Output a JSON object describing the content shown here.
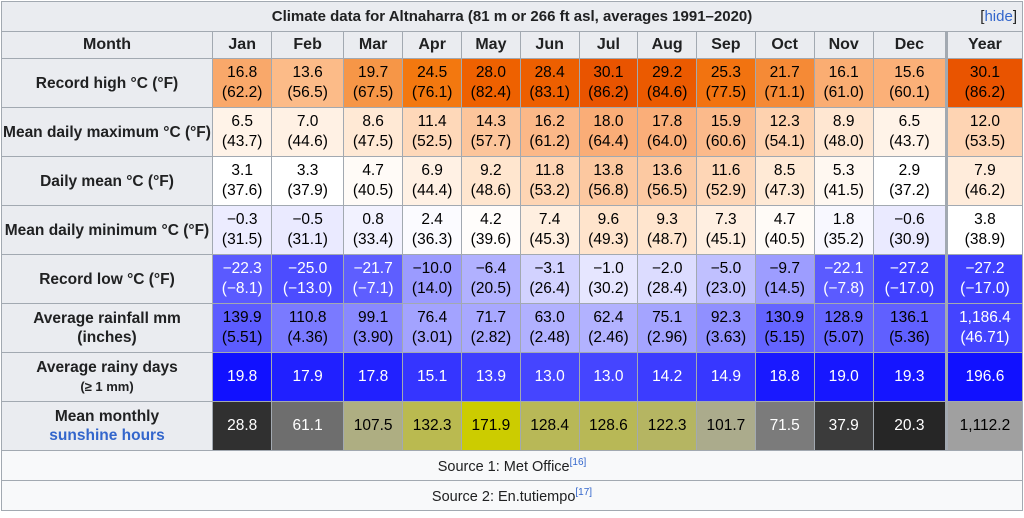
{
  "title": "Climate data for Altnaharra (81 m or 266 ft asl, averages 1991–2020)",
  "hide_bracket_open": "[",
  "hide_label": "hide",
  "hide_bracket_close": "]",
  "header": {
    "first": "Month",
    "months": [
      "Jan",
      "Feb",
      "Mar",
      "Apr",
      "May",
      "Jun",
      "Jul",
      "Aug",
      "Sep",
      "Oct",
      "Nov",
      "Dec"
    ],
    "year": "Year"
  },
  "rows": [
    {
      "name": "record-high",
      "label": "Record high °C (°F)",
      "months": [
        {
          "c": "16.8",
          "f": "(62.2)",
          "bg": "#f9a86a",
          "fg": "#000000"
        },
        {
          "c": "13.6",
          "f": "(56.5)",
          "bg": "#fcbb88",
          "fg": "#000000"
        },
        {
          "c": "19.7",
          "f": "(67.5)",
          "bg": "#f69647",
          "fg": "#000000"
        },
        {
          "c": "24.5",
          "f": "(76.1)",
          "bg": "#f3780f",
          "fg": "#000000"
        },
        {
          "c": "28.0",
          "f": "(82.4)",
          "bg": "#ee6100",
          "fg": "#000000"
        },
        {
          "c": "28.4",
          "f": "(83.1)",
          "bg": "#ed5f00",
          "fg": "#000000"
        },
        {
          "c": "30.1",
          "f": "(86.2)",
          "bg": "#e95400",
          "fg": "#000000"
        },
        {
          "c": "29.2",
          "f": "(84.6)",
          "bg": "#eb5a00",
          "fg": "#000000"
        },
        {
          "c": "25.3",
          "f": "(77.5)",
          "bg": "#f27310",
          "fg": "#000000"
        },
        {
          "c": "21.7",
          "f": "(71.1)",
          "bg": "#f58a36",
          "fg": "#000000"
        },
        {
          "c": "16.1",
          "f": "(61.0)",
          "bg": "#faad72",
          "fg": "#000000"
        },
        {
          "c": "15.6",
          "f": "(60.1)",
          "bg": "#fbb078",
          "fg": "#000000"
        }
      ],
      "year": {
        "c": "30.1",
        "f": "(86.2)",
        "bg": "#e95400",
        "fg": "#000000"
      }
    },
    {
      "name": "mean-daily-maximum",
      "label": "Mean daily maximum °C (°F)",
      "months": [
        {
          "c": "6.5",
          "f": "(43.7)",
          "bg": "#fff3e8",
          "fg": "#000000"
        },
        {
          "c": "7.0",
          "f": "(44.6)",
          "bg": "#fff1e4",
          "fg": "#000000"
        },
        {
          "c": "8.6",
          "f": "(47.5)",
          "bg": "#ffe9d5",
          "fg": "#000000"
        },
        {
          "c": "11.4",
          "f": "(52.5)",
          "bg": "#fed8b9",
          "fg": "#000000"
        },
        {
          "c": "14.3",
          "f": "(57.7)",
          "bg": "#fcc59b",
          "fg": "#000000"
        },
        {
          "c": "16.2",
          "f": "(61.2)",
          "bg": "#fbb888",
          "fg": "#000000"
        },
        {
          "c": "18.0",
          "f": "(64.4)",
          "bg": "#faad77",
          "fg": "#000000"
        },
        {
          "c": "17.8",
          "f": "(64.0)",
          "bg": "#faae79",
          "fg": "#000000"
        },
        {
          "c": "15.9",
          "f": "(60.6)",
          "bg": "#fbba8b",
          "fg": "#000000"
        },
        {
          "c": "12.3",
          "f": "(54.1)",
          "bg": "#fed2af",
          "fg": "#000000"
        },
        {
          "c": "8.9",
          "f": "(48.0)",
          "bg": "#ffe7d2",
          "fg": "#000000"
        },
        {
          "c": "6.5",
          "f": "(43.7)",
          "bg": "#fff3e8",
          "fg": "#000000"
        }
      ],
      "year": {
        "c": "12.0",
        "f": "(53.5)",
        "bg": "#fed4b3",
        "fg": "#000000"
      }
    },
    {
      "name": "daily-mean",
      "label": "Daily mean °C (°F)",
      "months": [
        {
          "c": "3.1",
          "f": "(37.6)",
          "bg": "#ffffff",
          "fg": "#000000"
        },
        {
          "c": "3.3",
          "f": "(37.9)",
          "bg": "#ffffff",
          "fg": "#000000"
        },
        {
          "c": "4.7",
          "f": "(40.5)",
          "bg": "#fffbf7",
          "fg": "#000000"
        },
        {
          "c": "6.9",
          "f": "(44.4)",
          "bg": "#fff1e4",
          "fg": "#000000"
        },
        {
          "c": "9.2",
          "f": "(48.6)",
          "bg": "#ffe6cf",
          "fg": "#000000"
        },
        {
          "c": "11.8",
          "f": "(53.2)",
          "bg": "#fed5b4",
          "fg": "#000000"
        },
        {
          "c": "13.8",
          "f": "(56.8)",
          "bg": "#fcc8a0",
          "fg": "#000000"
        },
        {
          "c": "13.6",
          "f": "(56.5)",
          "bg": "#fcc9a2",
          "fg": "#000000"
        },
        {
          "c": "11.6",
          "f": "(52.9)",
          "bg": "#fed6b6",
          "fg": "#000000"
        },
        {
          "c": "8.5",
          "f": "(47.3)",
          "bg": "#ffead6",
          "fg": "#000000"
        },
        {
          "c": "5.3",
          "f": "(41.5)",
          "bg": "#fff8f1",
          "fg": "#000000"
        },
        {
          "c": "2.9",
          "f": "(37.2)",
          "bg": "#ffffff",
          "fg": "#000000"
        }
      ],
      "year": {
        "c": "7.9",
        "f": "(46.2)",
        "bg": "#ffecdb",
        "fg": "#000000"
      }
    },
    {
      "name": "mean-daily-minimum",
      "label": "Mean daily minimum °C (°F)",
      "months": [
        {
          "c": "−0.3",
          "f": "(31.5)",
          "bg": "#ececff",
          "fg": "#000000"
        },
        {
          "c": "−0.5",
          "f": "(31.1)",
          "bg": "#eaeaff",
          "fg": "#000000"
        },
        {
          "c": "0.8",
          "f": "(33.4)",
          "bg": "#f2f2ff",
          "fg": "#000000"
        },
        {
          "c": "2.4",
          "f": "(36.3)",
          "bg": "#fbfbff",
          "fg": "#000000"
        },
        {
          "c": "4.2",
          "f": "(39.6)",
          "bg": "#fffdfb",
          "fg": "#000000"
        },
        {
          "c": "7.4",
          "f": "(45.3)",
          "bg": "#ffefe0",
          "fg": "#000000"
        },
        {
          "c": "9.6",
          "f": "(49.3)",
          "bg": "#ffe4cc",
          "fg": "#000000"
        },
        {
          "c": "9.3",
          "f": "(48.7)",
          "bg": "#ffe5ce",
          "fg": "#000000"
        },
        {
          "c": "7.3",
          "f": "(45.1)",
          "bg": "#ffefe1",
          "fg": "#000000"
        },
        {
          "c": "4.7",
          "f": "(40.5)",
          "bg": "#fffbf7",
          "fg": "#000000"
        },
        {
          "c": "1.8",
          "f": "(35.2)",
          "bg": "#f8f8ff",
          "fg": "#000000"
        },
        {
          "c": "−0.6",
          "f": "(30.9)",
          "bg": "#eaeaff",
          "fg": "#000000"
        }
      ],
      "year": {
        "c": "3.8",
        "f": "(38.9)",
        "bg": "#ffffff",
        "fg": "#000000"
      }
    },
    {
      "name": "record-low",
      "label": "Record low °C (°F)",
      "months": [
        {
          "c": "−22.3",
          "f": "(−8.1)",
          "bg": "#5a5aff",
          "fg": "#ffffff"
        },
        {
          "c": "−25.0",
          "f": "(−13.0)",
          "bg": "#4c4cff",
          "fg": "#ffffff"
        },
        {
          "c": "−21.7",
          "f": "(−7.1)",
          "bg": "#5e5eff",
          "fg": "#ffffff"
        },
        {
          "c": "−10.0",
          "f": "(14.0)",
          "bg": "#9b9bff",
          "fg": "#000000"
        },
        {
          "c": "−6.4",
          "f": "(20.5)",
          "bg": "#b1b1ff",
          "fg": "#000000"
        },
        {
          "c": "−3.1",
          "f": "(26.4)",
          "bg": "#d2d2ff",
          "fg": "#000000"
        },
        {
          "c": "−1.0",
          "f": "(30.2)",
          "bg": "#e6e6ff",
          "fg": "#000000"
        },
        {
          "c": "−2.0",
          "f": "(28.4)",
          "bg": "#dcdcff",
          "fg": "#000000"
        },
        {
          "c": "−5.0",
          "f": "(23.0)",
          "bg": "#c0c0ff",
          "fg": "#000000"
        },
        {
          "c": "−9.7",
          "f": "(14.5)",
          "bg": "#9d9dff",
          "fg": "#000000"
        },
        {
          "c": "−22.1",
          "f": "(−7.8)",
          "bg": "#5b5bff",
          "fg": "#ffffff"
        },
        {
          "c": "−27.2",
          "f": "(−17.0)",
          "bg": "#4040ff",
          "fg": "#ffffff"
        }
      ],
      "year": {
        "c": "−27.2",
        "f": "(−17.0)",
        "bg": "#4040ff",
        "fg": "#ffffff"
      }
    },
    {
      "name": "average-rainfall",
      "label": "Average rainfall mm (inches)",
      "months": [
        {
          "c": "139.9",
          "f": "(5.51)",
          "bg": "#5c5cff",
          "fg": "#000000"
        },
        {
          "c": "110.8",
          "f": "(4.36)",
          "bg": "#7a7aff",
          "fg": "#000000"
        },
        {
          "c": "99.1",
          "f": "(3.90)",
          "bg": "#8989ff",
          "fg": "#000000"
        },
        {
          "c": "76.4",
          "f": "(3.01)",
          "bg": "#a3a3ff",
          "fg": "#000000"
        },
        {
          "c": "71.7",
          "f": "(2.82)",
          "bg": "#a8a8ff",
          "fg": "#000000"
        },
        {
          "c": "63.0",
          "f": "(2.48)",
          "bg": "#b1b1ff",
          "fg": "#000000"
        },
        {
          "c": "62.4",
          "f": "(2.46)",
          "bg": "#b2b2ff",
          "fg": "#000000"
        },
        {
          "c": "75.1",
          "f": "(2.96)",
          "bg": "#a4a4ff",
          "fg": "#000000"
        },
        {
          "c": "92.3",
          "f": "(3.63)",
          "bg": "#9090ff",
          "fg": "#000000"
        },
        {
          "c": "130.9",
          "f": "(5.15)",
          "bg": "#6464ff",
          "fg": "#000000"
        },
        {
          "c": "128.9",
          "f": "(5.07)",
          "bg": "#6666ff",
          "fg": "#000000"
        },
        {
          "c": "136.1",
          "f": "(5.36)",
          "bg": "#6060ff",
          "fg": "#000000"
        }
      ],
      "year": {
        "c": "1,186.4",
        "f": "(46.71)",
        "bg": "#4444ff",
        "fg": "#ffffff"
      }
    },
    {
      "name": "average-rainy-days",
      "label": "Average rainy days",
      "sub": "(≥ 1 mm)",
      "months": [
        {
          "c": "19.8",
          "bg": "#1111ff",
          "fg": "#ffffff"
        },
        {
          "c": "17.9",
          "bg": "#2020ff",
          "fg": "#ffffff"
        },
        {
          "c": "17.8",
          "bg": "#2121ff",
          "fg": "#ffffff"
        },
        {
          "c": "15.1",
          "bg": "#3535ff",
          "fg": "#ffffff"
        },
        {
          "c": "13.9",
          "bg": "#3e3eff",
          "fg": "#ffffff"
        },
        {
          "c": "13.0",
          "bg": "#4545ff",
          "fg": "#ffffff"
        },
        {
          "c": "13.0",
          "bg": "#4545ff",
          "fg": "#ffffff"
        },
        {
          "c": "14.2",
          "bg": "#3c3cff",
          "fg": "#ffffff"
        },
        {
          "c": "14.9",
          "bg": "#3737ff",
          "fg": "#ffffff"
        },
        {
          "c": "18.8",
          "bg": "#1919ff",
          "fg": "#ffffff"
        },
        {
          "c": "19.0",
          "bg": "#1717ff",
          "fg": "#ffffff"
        },
        {
          "c": "19.3",
          "bg": "#1515ff",
          "fg": "#ffffff"
        }
      ],
      "year": {
        "c": "196.6",
        "bg": "#1111ff",
        "fg": "#ffffff"
      }
    },
    {
      "name": "mean-monthly-sunshine",
      "label": "Mean monthly",
      "link": "sunshine hours",
      "months": [
        {
          "c": "28.8",
          "bg": "#303030",
          "fg": "#ffffff"
        },
        {
          "c": "61.1",
          "bg": "#6e6e6e",
          "fg": "#ffffff"
        },
        {
          "c": "107.5",
          "bg": "#aeae82",
          "fg": "#000000"
        },
        {
          "c": "132.3",
          "bg": "#baba50",
          "fg": "#000000"
        },
        {
          "c": "171.9",
          "bg": "#cccc00",
          "fg": "#000000"
        },
        {
          "c": "128.4",
          "bg": "#b8b857",
          "fg": "#000000"
        },
        {
          "c": "128.6",
          "bg": "#b8b856",
          "fg": "#000000"
        },
        {
          "c": "122.3",
          "bg": "#b5b562",
          "fg": "#000000"
        },
        {
          "c": "101.7",
          "bg": "#abab8c",
          "fg": "#000000"
        },
        {
          "c": "71.5",
          "bg": "#7b7b7b",
          "fg": "#ffffff"
        },
        {
          "c": "37.9",
          "bg": "#3b3b3b",
          "fg": "#ffffff"
        },
        {
          "c": "20.3",
          "bg": "#262626",
          "fg": "#ffffff"
        }
      ],
      "year": {
        "c": "1,112.2",
        "bg": "#a0a0a0",
        "fg": "#000000"
      }
    }
  ],
  "sources": [
    {
      "text": "Source 1: Met Office",
      "ref": "[16]"
    },
    {
      "text": "Source 2: En.tutiempo",
      "ref": "[17]"
    }
  ]
}
